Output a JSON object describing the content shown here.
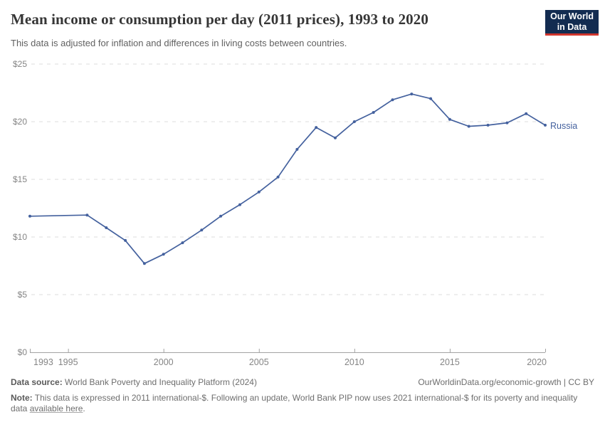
{
  "header": {
    "title": "Mean income or consumption per day (2011 prices), 1993 to 2020",
    "subtitle": "This data is adjusted for inflation and differences in living costs between countries.",
    "logo": {
      "line1": "Our World",
      "line2": "in Data"
    }
  },
  "chart_data": {
    "type": "line",
    "title": "Mean income or consumption per day (2011 prices), 1993 to 2020",
    "x": [
      1993,
      1996,
      1997,
      1998,
      1999,
      2000,
      2001,
      2002,
      2003,
      2004,
      2005,
      2006,
      2007,
      2008,
      2009,
      2010,
      2011,
      2012,
      2013,
      2014,
      2015,
      2016,
      2017,
      2018,
      2019,
      2020
    ],
    "series": [
      {
        "name": "Russia",
        "values": [
          11.8,
          11.9,
          10.8,
          9.7,
          7.7,
          8.5,
          9.5,
          10.6,
          11.8,
          12.8,
          13.9,
          15.2,
          17.6,
          19.5,
          18.6,
          20.0,
          20.8,
          21.9,
          22.4,
          22.0,
          20.2,
          19.6,
          19.7,
          19.9,
          20.7,
          19.7
        ]
      }
    ],
    "xlabel": "",
    "ylabel": "",
    "ylim": [
      0,
      25
    ],
    "xlim": [
      1993,
      2020
    ],
    "y_ticks": [
      0,
      5,
      10,
      15,
      20,
      25
    ],
    "y_tick_prefix": "$",
    "x_ticks": [
      1993,
      1995,
      2000,
      2005,
      2010,
      2015,
      2020
    ],
    "grid": "horizontal-dashed",
    "legend_position": "end-of-line-label",
    "colors": {
      "line": "#44619e",
      "grid": "#dcdcdc",
      "axis": "#a3a3a3",
      "tick_label": "#858585"
    }
  },
  "footer": {
    "source_label": "Data source:",
    "source_text": "World Bank Poverty and Inequality Platform (2024)",
    "rights": "OurWorldinData.org/economic-growth | CC BY",
    "note_label": "Note:",
    "note_text": "This data is expressed in 2011 international-$. Following an update, World Bank PIP now uses 2021 international-$ for its poverty and inequality data",
    "note_link": "available here",
    "note_suffix": "."
  }
}
